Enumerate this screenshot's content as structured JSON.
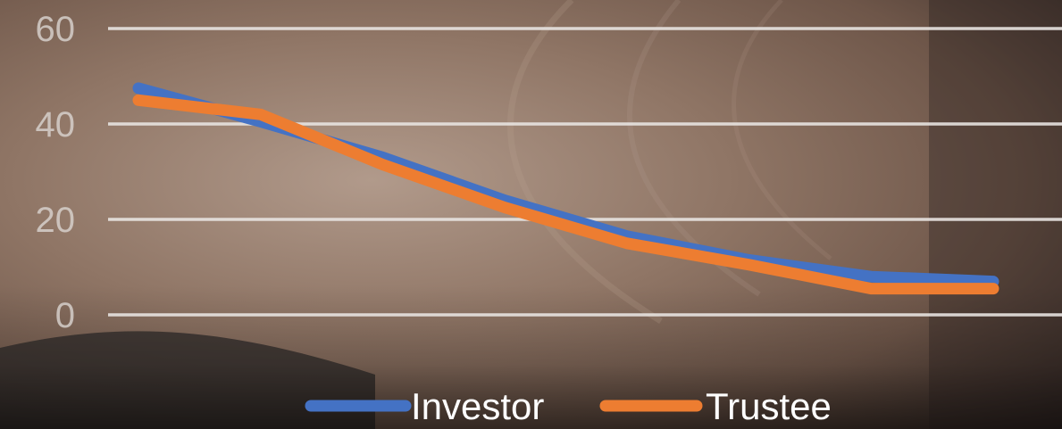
{
  "chart_data": {
    "type": "line",
    "title": "",
    "xlabel": "",
    "ylabel": "",
    "x": [
      1,
      2,
      3,
      4,
      5,
      6,
      7,
      8
    ],
    "ylim": [
      0,
      60
    ],
    "yticks": [
      "60",
      "40",
      "20",
      "0"
    ],
    "grid": true,
    "legend": "bottom",
    "series": [
      {
        "name": "Investor",
        "color": "#4472c4",
        "values": [
          47.5,
          40.5,
          33,
          24,
          16.5,
          11.5,
          8,
          7
        ]
      },
      {
        "name": "Trustee",
        "color": "#ed7d31",
        "values": [
          45,
          42,
          31.5,
          22.5,
          15,
          10.5,
          5.5,
          5.5
        ]
      }
    ]
  },
  "colors": {
    "background": "#6b5347",
    "gridline": "#e8e4e1",
    "tick_text": "#d9d3cf"
  }
}
